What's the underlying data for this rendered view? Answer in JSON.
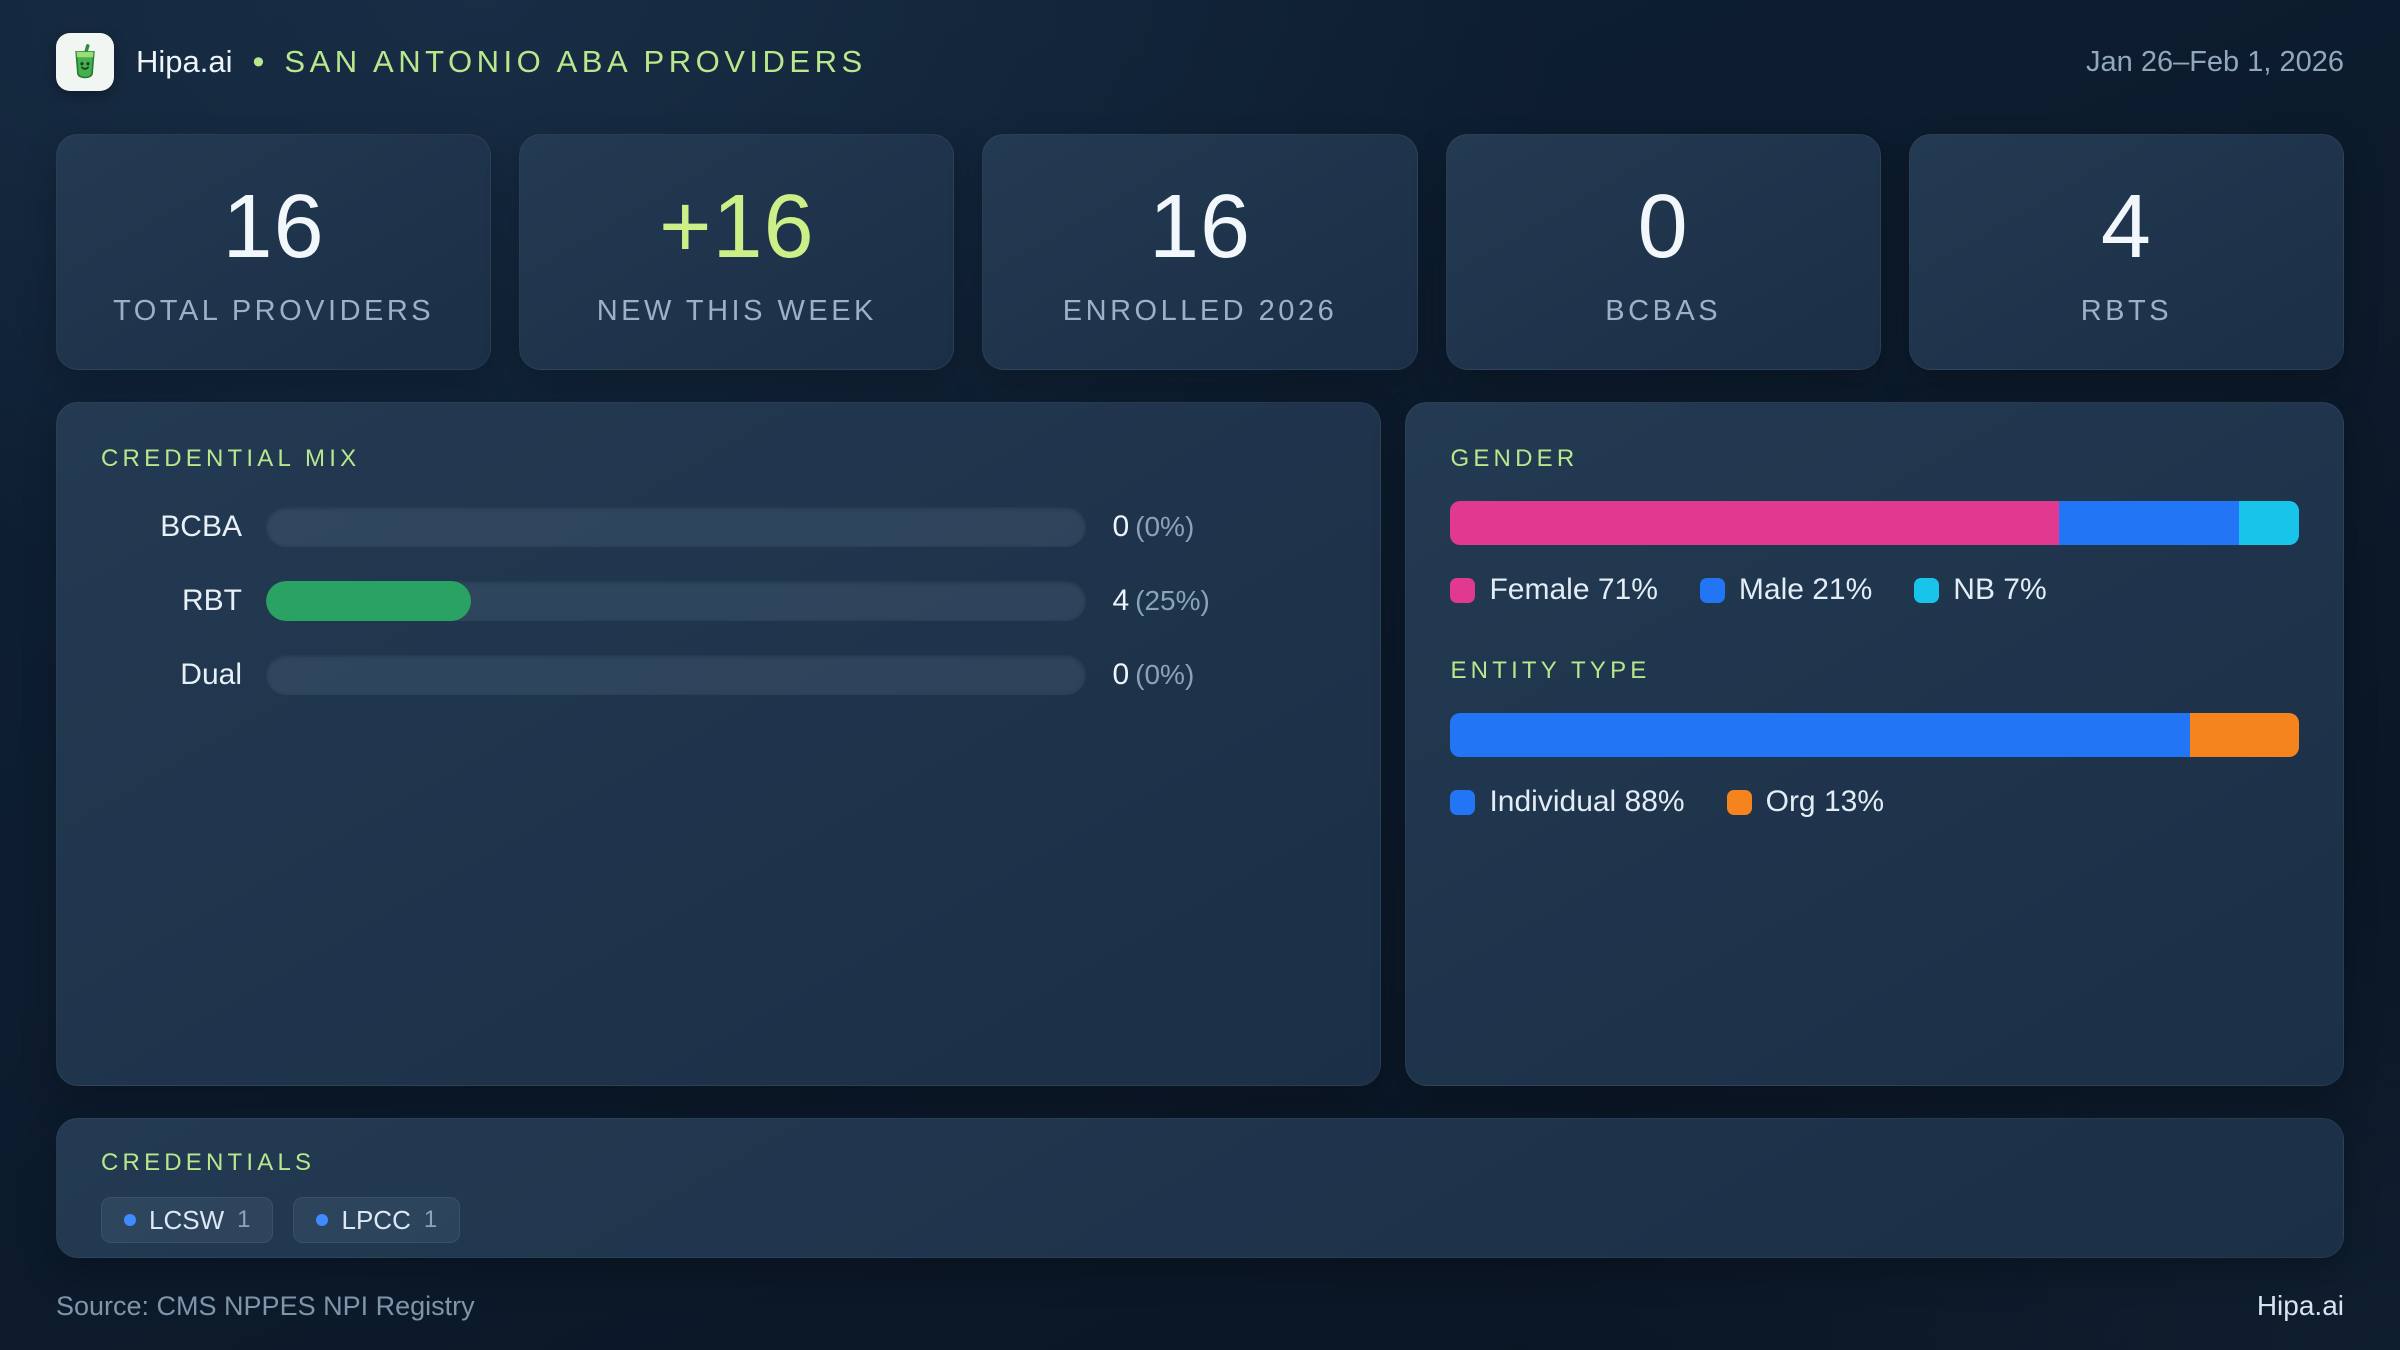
{
  "header": {
    "brand": "Hipa.ai",
    "separator": "•",
    "title": "SAN ANTONIO ABA PROVIDERS",
    "date_range": "Jan 26–Feb 1, 2026"
  },
  "stats": [
    {
      "value": "16",
      "label": "TOTAL PROVIDERS"
    },
    {
      "value": "+16",
      "label": "NEW THIS WEEK"
    },
    {
      "value": "16",
      "label": "ENROLLED 2026"
    },
    {
      "value": "0",
      "label": "BCBAS"
    },
    {
      "value": "4",
      "label": "RBTS"
    }
  ],
  "credential_mix": {
    "title": "CREDENTIAL MIX",
    "bar_color": "#2aa263",
    "rows": [
      {
        "label": "BCBA",
        "count": "0",
        "pct_label": "(0%)",
        "fill_pct": 0
      },
      {
        "label": "RBT",
        "count": "4",
        "pct_label": "(25%)",
        "fill_pct": 25
      },
      {
        "label": "Dual",
        "count": "0",
        "pct_label": "(0%)",
        "fill_pct": 0
      }
    ]
  },
  "gender": {
    "title": "GENDER",
    "segments": [
      {
        "name": "Female",
        "legend": "Female 71%",
        "pct": 71,
        "color": "#e23990"
      },
      {
        "name": "Male",
        "legend": "Male 21%",
        "pct": 21,
        "color": "#2276f5"
      },
      {
        "name": "NB",
        "legend": "NB 7%",
        "pct": 7,
        "color": "#18c4ea"
      }
    ]
  },
  "entity_type": {
    "title": "ENTITY TYPE",
    "segments": [
      {
        "name": "Individual",
        "legend": "Individual 88%",
        "pct": 88,
        "color": "#2276f5"
      },
      {
        "name": "Org",
        "legend": "Org 13%",
        "pct": 13,
        "color": "#f5841f"
      }
    ]
  },
  "credentials": {
    "title": "CREDENTIALS",
    "chips": [
      {
        "label": "LCSW",
        "count": "1"
      },
      {
        "label": "LPCC",
        "count": "1"
      }
    ]
  },
  "footer": {
    "source": "Source: CMS NPPES NPI Registry",
    "brand": "Hipa.ai"
  },
  "colors": {
    "accent_green": "#cdef87",
    "title_green": "#b9e78c",
    "rbt_green": "#2aa263",
    "female_pink": "#e23990",
    "male_blue": "#2276f5",
    "nb_cyan": "#18c4ea",
    "individual_blue": "#2276f5",
    "org_orange": "#f5841f",
    "chip_dot_blue": "#3f8cff"
  },
  "chart_data": [
    {
      "type": "bar",
      "title": "CREDENTIAL MIX",
      "orientation": "horizontal",
      "categories": [
        "BCBA",
        "RBT",
        "Dual"
      ],
      "values": [
        0,
        4,
        0
      ],
      "percentages": [
        0,
        25,
        0
      ],
      "value_labels": [
        "0 (0%)",
        "4 (25%)",
        "0 (0%)"
      ],
      "xlim": [
        0,
        100
      ],
      "bar_color": "#2aa263",
      "grid": false,
      "legend_position": "none"
    },
    {
      "type": "bar",
      "title": "GENDER",
      "orientation": "horizontal",
      "stacked": true,
      "series": [
        {
          "name": "Female",
          "values": [
            71
          ],
          "color": "#e23990"
        },
        {
          "name": "Male",
          "values": [
            21
          ],
          "color": "#2276f5"
        },
        {
          "name": "NB",
          "values": [
            7
          ],
          "color": "#18c4ea"
        }
      ],
      "legend_entries": [
        "Female 71%",
        "Male 21%",
        "NB 7%"
      ],
      "legend_position": "bottom",
      "xlim": [
        0,
        100
      ]
    },
    {
      "type": "bar",
      "title": "ENTITY TYPE",
      "orientation": "horizontal",
      "stacked": true,
      "series": [
        {
          "name": "Individual",
          "values": [
            88
          ],
          "color": "#2276f5"
        },
        {
          "name": "Org",
          "values": [
            13
          ],
          "color": "#f5841f"
        }
      ],
      "legend_entries": [
        "Individual 88%",
        "Org 13%"
      ],
      "legend_position": "bottom",
      "xlim": [
        0,
        100
      ]
    }
  ]
}
